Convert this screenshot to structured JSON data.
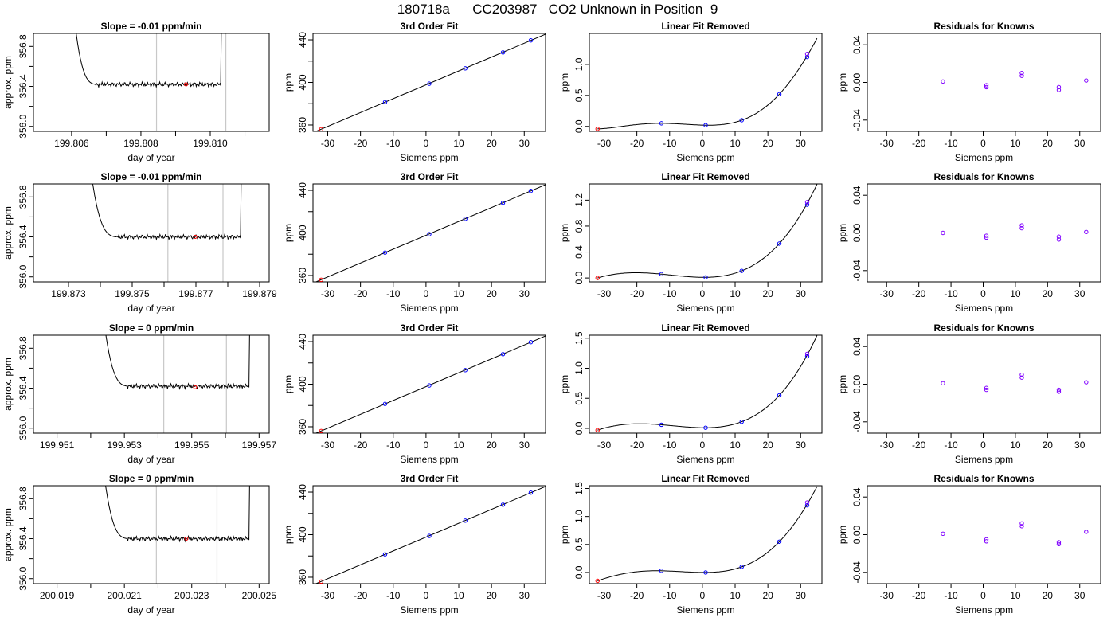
{
  "page": {
    "title": "180718a      CC203987   CO2 Unknown in Position  9"
  },
  "colors": {
    "line": "#000000",
    "vline": "#c8c8c8",
    "red_point": "#ff0000",
    "blue_point": "#0000ff",
    "purple_point": "#8000ff"
  },
  "chart_data": [
    {
      "type": "line",
      "title": "Slope =  -0.01  ppm/min",
      "xlabel": "day of year",
      "ylabel": "approx. ppm",
      "xlim": [
        199.8049,
        199.8117
      ],
      "ylim": [
        355.95,
        356.93
      ],
      "xticks": [
        199.806,
        199.808,
        199.81
      ],
      "xticklabels": [
        "199.806",
        "199.808",
        "199.810"
      ],
      "xticks_unlabeled": [
        199.807,
        199.809,
        199.811
      ],
      "yticks": [
        356.0,
        356.4,
        356.8
      ],
      "yticklabels": [
        "356.0",
        "356.4",
        "356.8"
      ],
      "yticks_unlabeled": [
        356.2,
        356.6
      ],
      "vlines": [
        199.80845,
        199.81045
      ],
      "marker": {
        "x": 199.8093,
        "y": 356.42
      },
      "line": {
        "x_start": 199.806,
        "x_flat": 199.8067,
        "x_end": 199.8103,
        "base": 356.42
      }
    },
    {
      "type": "scatter",
      "title": "3rd Order Fit",
      "xlabel": "Siemens ppm",
      "ylabel": "ppm",
      "xlim": [
        -34.5,
        36.5
      ],
      "ylim": [
        354,
        446
      ],
      "xticks": [
        -30,
        -20,
        -10,
        0,
        10,
        20,
        30
      ],
      "yticks": [
        360,
        400,
        440
      ],
      "yticks_unlabeled": [
        380,
        420
      ],
      "points": [
        {
          "x": -32,
          "y": 356,
          "color": "red"
        },
        {
          "x": -12.5,
          "y": 381.5,
          "color": "blue"
        },
        {
          "x": 1,
          "y": 398.8,
          "color": "blue"
        },
        {
          "x": 12,
          "y": 413.2,
          "color": "blue"
        },
        {
          "x": 23.5,
          "y": 428.2,
          "color": "blue"
        },
        {
          "x": 32,
          "y": 439.5,
          "color": "blue"
        }
      ],
      "fit": [
        [
          -34.5,
          352.8
        ],
        [
          36.5,
          445.3
        ]
      ]
    },
    {
      "type": "scatter",
      "title": "Linear Fit Removed",
      "xlabel": "Siemens ppm",
      "ylabel": "ppm",
      "xlim": [
        -34.5,
        36.5
      ],
      "ylim": [
        -0.08,
        1.5
      ],
      "xticks": [
        -30,
        -20,
        -10,
        0,
        10,
        20,
        30
      ],
      "yticks": [
        0.0,
        0.5,
        1.0
      ],
      "yticklabels": [
        "0.0",
        "0.5",
        "1.0"
      ],
      "points": [
        {
          "x": -32,
          "y": -0.04,
          "color": "red"
        },
        {
          "x": -12.5,
          "y": 0.05,
          "color": "blue"
        },
        {
          "x": 1,
          "y": 0.02,
          "color": "blue"
        },
        {
          "x": 12,
          "y": 0.1,
          "color": "blue"
        },
        {
          "x": 23.5,
          "y": 0.52,
          "color": "blue"
        },
        {
          "x": 32,
          "y": 1.12,
          "color": "blue"
        },
        {
          "x": 32,
          "y": 1.17,
          "color": "purple"
        }
      ],
      "curve": {
        "x0": -32,
        "p": [
          -0.04,
          0.05,
          0.02,
          0.1,
          0.52,
          1.14
        ]
      }
    },
    {
      "type": "scatter",
      "title": "Residuals for Knowns",
      "xlabel": "Siemens ppm",
      "ylabel": "ppm",
      "xlim": [
        -36,
        36.5
      ],
      "ylim": [
        -0.052,
        0.052
      ],
      "xticks": [
        -30,
        -20,
        -10,
        0,
        10,
        20,
        30
      ],
      "yticks": [
        -0.04,
        0.0,
        0.04
      ],
      "yticklabels": [
        "-0.04",
        "0.00",
        "0.04"
      ],
      "points": [
        {
          "x": -12.5,
          "y": 0.001
        },
        {
          "x": 1,
          "y": -0.003
        },
        {
          "x": 1,
          "y": -0.005
        },
        {
          "x": 12,
          "y": 0.007
        },
        {
          "x": 12,
          "y": 0.01
        },
        {
          "x": 23.5,
          "y": -0.005
        },
        {
          "x": 23.5,
          "y": -0.008
        },
        {
          "x": 32,
          "y": 0.002
        }
      ]
    },
    {
      "type": "line",
      "title": "Slope =  -0.01  ppm/min",
      "xlabel": "day of year",
      "ylabel": "approx. ppm",
      "xlim": [
        199.8719,
        199.8793
      ],
      "ylim": [
        355.95,
        356.93
      ],
      "xticks": [
        199.873,
        199.875,
        199.877,
        199.879
      ],
      "xticklabels": [
        "199.873",
        "199.875",
        "199.877",
        "199.879"
      ],
      "xticks_unlabeled": [
        199.874,
        199.876,
        199.878
      ],
      "yticks": [
        356.0,
        356.4,
        356.8
      ],
      "yticklabels": [
        "356.0",
        "356.4",
        "356.8"
      ],
      "yticks_unlabeled": [
        356.2,
        356.6
      ],
      "vlines": [
        199.87612,
        199.87785
      ],
      "marker": {
        "x": 199.87698,
        "y": 356.4
      },
      "line": {
        "x_start": 199.8736,
        "x_flat": 199.8745,
        "x_end": 199.8784,
        "base": 356.4
      }
    },
    {
      "type": "scatter",
      "title": "3rd Order Fit",
      "xlabel": "Siemens ppm",
      "ylabel": "ppm",
      "xlim": [
        -34.5,
        36.5
      ],
      "ylim": [
        354,
        446
      ],
      "xticks": [
        -30,
        -20,
        -10,
        0,
        10,
        20,
        30
      ],
      "yticks": [
        360,
        400,
        440
      ],
      "yticks_unlabeled": [
        380,
        420
      ],
      "points": [
        {
          "x": -32,
          "y": 356,
          "color": "red"
        },
        {
          "x": -12.5,
          "y": 381.5,
          "color": "blue"
        },
        {
          "x": 1,
          "y": 398.8,
          "color": "blue"
        },
        {
          "x": 12,
          "y": 413.2,
          "color": "blue"
        },
        {
          "x": 23.5,
          "y": 428.2,
          "color": "blue"
        },
        {
          "x": 32,
          "y": 439.5,
          "color": "blue"
        }
      ],
      "fit": [
        [
          -34.5,
          352.8
        ],
        [
          36.5,
          445.3
        ]
      ]
    },
    {
      "type": "scatter",
      "title": "Linear Fit Removed",
      "xlabel": "Siemens ppm",
      "ylabel": "ppm",
      "xlim": [
        -34.5,
        36.5
      ],
      "ylim": [
        -0.06,
        1.45
      ],
      "xticks": [
        -30,
        -20,
        -10,
        0,
        10,
        20,
        30
      ],
      "yticks": [
        0.0,
        0.4,
        0.8,
        1.2
      ],
      "yticklabels": [
        "0.0",
        "0.4",
        "0.8",
        "1.2"
      ],
      "points": [
        {
          "x": -32,
          "y": 0.0,
          "color": "red"
        },
        {
          "x": -12.5,
          "y": 0.06,
          "color": "blue"
        },
        {
          "x": 1,
          "y": 0.01,
          "color": "blue"
        },
        {
          "x": 12,
          "y": 0.11,
          "color": "blue"
        },
        {
          "x": 23.5,
          "y": 0.53,
          "color": "blue"
        },
        {
          "x": 32,
          "y": 1.13,
          "color": "blue"
        },
        {
          "x": 32,
          "y": 1.17,
          "color": "purple"
        }
      ],
      "curve": {
        "x0": -32,
        "p": [
          0.0,
          0.06,
          0.01,
          0.11,
          0.53,
          1.15
        ]
      }
    },
    {
      "type": "scatter",
      "title": "Residuals for Knowns",
      "xlabel": "Siemens ppm",
      "ylabel": "ppm",
      "xlim": [
        -36,
        36.5
      ],
      "ylim": [
        -0.052,
        0.052
      ],
      "xticks": [
        -30,
        -20,
        -10,
        0,
        10,
        20,
        30
      ],
      "yticks": [
        -0.04,
        0.0,
        0.04
      ],
      "yticklabels": [
        "-0.04",
        "0.00",
        "0.04"
      ],
      "points": [
        {
          "x": -12.5,
          "y": 0.0
        },
        {
          "x": 1,
          "y": -0.003
        },
        {
          "x": 1,
          "y": -0.005
        },
        {
          "x": 12,
          "y": 0.005
        },
        {
          "x": 12,
          "y": 0.008
        },
        {
          "x": 23.5,
          "y": -0.004
        },
        {
          "x": 23.5,
          "y": -0.007
        },
        {
          "x": 32,
          "y": 0.001
        }
      ]
    },
    {
      "type": "line",
      "title": "Slope =  0  ppm/min",
      "xlabel": "day of year",
      "ylabel": "approx. ppm",
      "xlim": [
        199.9503,
        199.9573
      ],
      "ylim": [
        355.95,
        356.93
      ],
      "xticks": [
        199.951,
        199.953,
        199.955,
        199.957
      ],
      "xticklabels": [
        "199.951",
        "199.953",
        "199.955",
        "199.957"
      ],
      "xticks_unlabeled": [
        199.952,
        199.954,
        199.956
      ],
      "yticks": [
        356.0,
        356.4,
        356.8
      ],
      "yticklabels": [
        "356.0",
        "356.4",
        "356.8"
      ],
      "yticks_unlabeled": [
        356.2,
        356.6
      ],
      "vlines": [
        199.95417,
        199.95603
      ],
      "marker": {
        "x": 199.9551,
        "y": 356.41
      },
      "line": {
        "x_start": 199.9523,
        "x_flat": 199.9531,
        "x_end": 199.9567,
        "base": 356.42
      }
    },
    {
      "type": "scatter",
      "title": "3rd Order Fit",
      "xlabel": "Siemens ppm",
      "ylabel": "ppm",
      "xlim": [
        -34.5,
        36.5
      ],
      "ylim": [
        354,
        446
      ],
      "xticks": [
        -30,
        -20,
        -10,
        0,
        10,
        20,
        30
      ],
      "yticks": [
        360,
        400,
        440
      ],
      "yticks_unlabeled": [
        380,
        420
      ],
      "points": [
        {
          "x": -32,
          "y": 356,
          "color": "red"
        },
        {
          "x": -12.5,
          "y": 381.5,
          "color": "blue"
        },
        {
          "x": 1,
          "y": 398.8,
          "color": "blue"
        },
        {
          "x": 12,
          "y": 413.2,
          "color": "blue"
        },
        {
          "x": 23.5,
          "y": 428.2,
          "color": "blue"
        },
        {
          "x": 32,
          "y": 439.5,
          "color": "blue"
        }
      ],
      "fit": [
        [
          -34.5,
          352.8
        ],
        [
          36.5,
          445.3
        ]
      ]
    },
    {
      "type": "scatter",
      "title": "Linear Fit Removed",
      "xlabel": "Siemens ppm",
      "ylabel": "ppm",
      "xlim": [
        -34.5,
        36.5
      ],
      "ylim": [
        -0.08,
        1.55
      ],
      "xticks": [
        -30,
        -20,
        -10,
        0,
        10,
        20,
        30
      ],
      "yticks": [
        0.0,
        0.5,
        1.0,
        1.5
      ],
      "yticklabels": [
        "0.0",
        "0.5",
        "1.0",
        "1.5"
      ],
      "points": [
        {
          "x": -32,
          "y": -0.03,
          "color": "red"
        },
        {
          "x": -12.5,
          "y": 0.06,
          "color": "blue"
        },
        {
          "x": 1,
          "y": 0.01,
          "color": "blue"
        },
        {
          "x": 12,
          "y": 0.11,
          "color": "blue"
        },
        {
          "x": 23.5,
          "y": 0.55,
          "color": "blue"
        },
        {
          "x": 32,
          "y": 1.2,
          "color": "blue"
        },
        {
          "x": 32,
          "y": 1.24,
          "color": "purple"
        }
      ],
      "curve": {
        "x0": -32,
        "p": [
          -0.03,
          0.06,
          0.01,
          0.11,
          0.55,
          1.22
        ]
      }
    },
    {
      "type": "scatter",
      "title": "Residuals for Knowns",
      "xlabel": "Siemens ppm",
      "ylabel": "ppm",
      "xlim": [
        -36,
        36.5
      ],
      "ylim": [
        -0.052,
        0.052
      ],
      "xticks": [
        -30,
        -20,
        -10,
        0,
        10,
        20,
        30
      ],
      "yticks": [
        -0.04,
        0.0,
        0.04
      ],
      "yticklabels": [
        "-0.04",
        "0.00",
        "0.04"
      ],
      "points": [
        {
          "x": -12.5,
          "y": 0.001
        },
        {
          "x": 1,
          "y": -0.004
        },
        {
          "x": 1,
          "y": -0.006
        },
        {
          "x": 12,
          "y": 0.007
        },
        {
          "x": 12,
          "y": 0.01
        },
        {
          "x": 23.5,
          "y": -0.006
        },
        {
          "x": 23.5,
          "y": -0.008
        },
        {
          "x": 32,
          "y": 0.002
        }
      ]
    },
    {
      "type": "line",
      "title": "Slope =  0  ppm/min",
      "xlabel": "day of year",
      "ylabel": "approx. ppm",
      "xlim": [
        200.0183,
        200.0253
      ],
      "ylim": [
        355.95,
        356.93
      ],
      "xticks": [
        200.019,
        200.021,
        200.023,
        200.025
      ],
      "xticklabels": [
        "200.019",
        "200.021",
        "200.023",
        "200.025"
      ],
      "xticks_unlabeled": [
        200.02,
        200.022,
        200.024
      ],
      "yticks": [
        356.0,
        356.4,
        356.8
      ],
      "yticklabels": [
        "356.0",
        "356.4",
        "356.8"
      ],
      "yticks_unlabeled": [
        356.2,
        356.6
      ],
      "vlines": [
        200.02195,
        200.02375
      ],
      "marker": {
        "x": 200.02284,
        "y": 356.4
      },
      "line": {
        "x_start": 200.0203,
        "x_flat": 200.0211,
        "x_end": 200.0247,
        "base": 356.4
      }
    },
    {
      "type": "scatter",
      "title": "3rd Order Fit",
      "xlabel": "Siemens ppm",
      "ylabel": "ppm",
      "xlim": [
        -34.5,
        36.5
      ],
      "ylim": [
        354,
        446
      ],
      "xticks": [
        -30,
        -20,
        -10,
        0,
        10,
        20,
        30
      ],
      "yticks": [
        360,
        400,
        440
      ],
      "yticks_unlabeled": [
        380,
        420
      ],
      "points": [
        {
          "x": -32,
          "y": 356,
          "color": "red"
        },
        {
          "x": -12.5,
          "y": 381.5,
          "color": "blue"
        },
        {
          "x": 1,
          "y": 398.8,
          "color": "blue"
        },
        {
          "x": 12,
          "y": 413.2,
          "color": "blue"
        },
        {
          "x": 23.5,
          "y": 428.2,
          "color": "blue"
        },
        {
          "x": 32,
          "y": 439.5,
          "color": "blue"
        }
      ],
      "fit": [
        [
          -34.5,
          352.8
        ],
        [
          36.5,
          445.3
        ]
      ]
    },
    {
      "type": "scatter",
      "title": "Linear Fit Removed",
      "xlabel": "Siemens ppm",
      "ylabel": "ppm",
      "xlim": [
        -34.5,
        36.5
      ],
      "ylim": [
        -0.2,
        1.55
      ],
      "xticks": [
        -30,
        -20,
        -10,
        0,
        10,
        20,
        30
      ],
      "yticks": [
        0.0,
        0.5,
        1.0,
        1.5
      ],
      "yticklabels": [
        "0.0",
        "0.5",
        "1.0",
        "1.5"
      ],
      "points": [
        {
          "x": -32,
          "y": -0.15,
          "color": "red"
        },
        {
          "x": -12.5,
          "y": 0.03,
          "color": "blue"
        },
        {
          "x": 1,
          "y": 0.0,
          "color": "blue"
        },
        {
          "x": 12,
          "y": 0.1,
          "color": "blue"
        },
        {
          "x": 23.5,
          "y": 0.55,
          "color": "blue"
        },
        {
          "x": 32,
          "y": 1.2,
          "color": "blue"
        },
        {
          "x": 32,
          "y": 1.25,
          "color": "purple"
        }
      ],
      "curve": {
        "x0": -32,
        "p": [
          -0.15,
          0.03,
          0.0,
          0.1,
          0.55,
          1.22
        ]
      }
    },
    {
      "type": "scatter",
      "title": "Residuals for Knowns",
      "xlabel": "Siemens ppm",
      "ylabel": "ppm",
      "xlim": [
        -36,
        36.5
      ],
      "ylim": [
        -0.052,
        0.052
      ],
      "xticks": [
        -30,
        -20,
        -10,
        0,
        10,
        20,
        30
      ],
      "yticks": [
        -0.04,
        0.0,
        0.04
      ],
      "yticklabels": [
        "-0.04",
        "0.00",
        "0.04"
      ],
      "points": [
        {
          "x": -12.5,
          "y": 0.001
        },
        {
          "x": 1,
          "y": -0.005
        },
        {
          "x": 1,
          "y": -0.007
        },
        {
          "x": 12,
          "y": 0.009
        },
        {
          "x": 12,
          "y": 0.012
        },
        {
          "x": 23.5,
          "y": -0.008
        },
        {
          "x": 23.5,
          "y": -0.01
        },
        {
          "x": 32,
          "y": 0.003
        }
      ]
    }
  ]
}
